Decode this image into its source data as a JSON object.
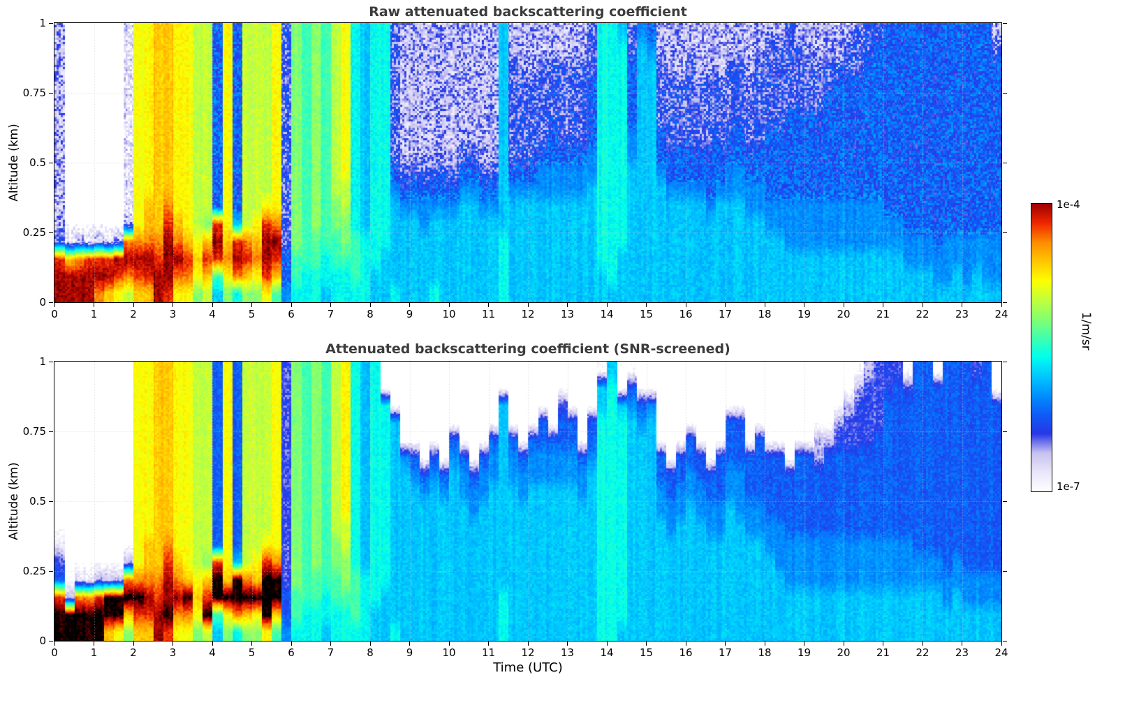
{
  "colorbar": {
    "top_label": "1e-4",
    "bottom_label": "1e-7",
    "unit_label": "1/m/sr"
  },
  "palette": {
    "note": "level 0 = below 1e-7 (white) up to level 15 = 1e-4 (dark red); level 16 = saturated/screened (black)",
    "levels": [
      "#ffffff",
      "#eae6fa",
      "#c8c2f0",
      "#2838e8",
      "#105cf8",
      "#0090ff",
      "#00c8ff",
      "#00ffee",
      "#40ffb0",
      "#85ff70",
      "#c3ff3c",
      "#ffff00",
      "#ffc800",
      "#ff8c00",
      "#f02800",
      "#a00000",
      "#000000"
    ]
  },
  "chart_data": [
    {
      "type": "heatmap",
      "title": "Raw attenuated backscattering coefficient",
      "xlabel": "",
      "ylabel": "Altitude (km)",
      "x_range_hours_utc": [
        0,
        24
      ],
      "y_range_km": [
        0,
        1
      ],
      "x_ticks": [
        0,
        1,
        2,
        3,
        4,
        5,
        6,
        7,
        8,
        9,
        10,
        11,
        12,
        13,
        14,
        15,
        16,
        17,
        18,
        19,
        20,
        21,
        22,
        23,
        24
      ],
      "y_ticks": [
        0,
        0.25,
        0.5,
        0.75,
        1
      ],
      "y_tick_labels": [
        "0",
        "0.25",
        "0.5",
        "0.75",
        "1"
      ],
      "grid": "dotted",
      "colormap": "jet-like, white at low end, 1e-7 to 1e-4 1/m/sr (log scale)",
      "grid_time_step_hours": 0.25,
      "grid_alt_step_km": 0.0625,
      "level_encoding": "each string = one 0.25 h time column, 16 hex chars top(1 km) to bottom(0 km); 0=white/no-signal .. f=1e-4, k=saturated(black)",
      "columns_top_to_bottom": [
        "2222222222223eff",
        "0000000000001cff",
        "0000000000002dff",
        "0000000000001eff",
        "0000000000002efd",
        "0000000000001efc",
        "0000000000002feb",
        "111111111112dfda",
        "bbbbbbbbbbbbdfec",
        "bbbbbbbbbbccdfec",
        "ccccccccccccdeff",
        "ccccccccccdefffe",
        "bbbbbbbbbbbcdfdb",
        "bbbbbbbbbbbbcedb",
        "aaaaaaaaaaaabcb9",
        "aaaaaaaaaaa9ceca",
        "44444444444efe86",
        "bbbbbbbbbbbbcdb9",
        "444444444446efd7",
        "aaaaaaaaaaaadec9",
        "aaaaaaaaaaabcdb9",
        "aaaaaaaaaabeffeb",
        "bbbbbbbbbbbdfec8",
        "3333333333333445",
        "9999999999999887",
        "8888888888888877",
        "9999999999998877",
        "8888888888888776",
        "aaaaaaaaaa998877",
        "bbbbbbbbbaa99877",
        "7777777777778887",
        "6666666666667777",
        "7777777777777766",
        "7777777777777666",
        "3333333345666667",
        "2222222234566666",
        "2222222234566666",
        "2222222234556666",
        "2222222234566667",
        "2222222234566666",
        "2222222234566666",
        "2222222345666666",
        "2222222345666666",
        "2222222234566666",
        "2222222234566666",
        "6666666666667777",
        "2233333345666666",
        "2223333345666666",
        "2223333345666666",
        "2233333455666666",
        "2233334455666666",
        "2233333455666666",
        "2233333455666666",
        "2233333455666666",
        "3334444556666666",
        "7777777777777766",
        "7777777777777776",
        "6777777777777666",
        "3344445566666666",
        "5666666666666666",
        "4566666666666666",
        "2233334456666666",
        "2223333445666666",
        "2223333445666666",
        "2233333445666666",
        "2223333445666666",
        "2223333444566666",
        "2223333445666666",
        "2233334455666666",
        "2233334455666666",
        "2223333445566666",
        "2233333445566666",
        "2333334444556666",
        "2333334444556666",
        "3333344444555666",
        "2333344444555666",
        "2233344444555666",
        "2233344444555666",
        "2233444444555666",
        "2234444444555666",
        "2334444444555666",
        "3334444444555666",
        "3344444444555666",
        "3444444444555666",
        "4444444444455666",
        "4444444444455666",
        "4444444444445566",
        "4444444444445566",
        "4444444444445566",
        "4444444444444556",
        "4444444444445556",
        "4444444444445566",
        "4444444444445556",
        "4444444444445566",
        "4444444444445556",
        "2344444444445556"
      ]
    },
    {
      "type": "heatmap",
      "title": "Attenuated backscattering coefficient (SNR-screened)",
      "xlabel": "Time (UTC)",
      "ylabel": "Altitude (km)",
      "x_range_hours_utc": [
        0,
        24
      ],
      "y_range_km": [
        0,
        1
      ],
      "x_ticks": [
        0,
        1,
        2,
        3,
        4,
        5,
        6,
        7,
        8,
        9,
        10,
        11,
        12,
        13,
        14,
        15,
        16,
        17,
        18,
        19,
        20,
        21,
        22,
        23,
        24
      ],
      "y_ticks": [
        0,
        0.25,
        0.5,
        0.75,
        1
      ],
      "y_tick_labels": [
        "0",
        "0.25",
        "0.5",
        "0.75",
        "1"
      ],
      "grid": "dotted",
      "colormap": "jet-like, white at low end, 1e-7 to 1e-4 1/m/sr (log scale); SNR-screened areas white, saturated layer black",
      "grid_time_step_hours": 0.25,
      "grid_alt_step_km": 0.0625,
      "level_encoding": "each string = one 0.25 h time column, 16 hex chars top(1 km) to bottom(0 km); 0=white/screened .. f=1e-4, k=saturated(black)",
      "columns_top_to_bottom": [
        "0000000000134ekk",
        "00000000000002kk",
        "0000000000001dkk",
        "0000000000001dkk",
        "0000000000002ekk",
        "0000000000002kkc",
        "0000000000002kkb",
        "000000000002dkc9",
        "bbbbbbbbbbbbdkec",
        "bbbbbbbbbbccdfec",
        "ccccccccccccdeff",
        "ccccccccccdeffke",
        "bbbbbbbbbbbcdfdb",
        "bbbbbbbbbbbbckdb",
        "aaaaaaaaaaaabcb9",
        "aaaaaaaaaaa9ceka",
        "44444444444ekk86",
        "bbbbbbbbbbbbckb9",
        "444444444446kkd7",
        "aaaaaaaaaaaadkc9",
        "aaaaaaaaaaabckb9",
        "aaaaaaaaaabekkkb",
        "bbbbbbbbbbbdkkc8",
        "3333333333333445",
        "9999999999999887",
        "8888888888888877",
        "9999999999998877",
        "8888888888888776",
        "aaaaaaaaaa998877",
        "bbbbbbbbbaa99877",
        "7777777777778887",
        "6666666666667777",
        "7777777777777766",
        "0077777777777666",
        "0006666666666667",
        "0000056666666666",
        "0000045666666666",
        "0000004566666666",
        "0000045666666666",
        "0000004566666666",
        "0000456666666666",
        "0000045566666666",
        "0000004556666666",
        "0000045566666666",
        "0000455666666666",
        "0066666666666777",
        "0000455666666666",
        "0000045566666666",
        "0000455666666666",
        "0004455666666666",
        "0000455666666666",
        "0034455666666666",
        "0004455666666666",
        "0000045566666666",
        "0004456666666666",
        "0667777777777777",
        "6777777777777777",
        "0067777777777776",
        "0456666666666666",
        "0045666666666666",
        "0056666666666666",
        "0000044556666666",
        "0000004455666666",
        "0000044556666666",
        "0000445566666666",
        "0000044556666666",
        "0000004455666666",
        "0000044455666666",
        "0004445566666666",
        "0004445556666666",
        "0000044455666666",
        "0000444455666666",
        "0000044445566666",
        "0000044445556666",
        "0000004444555666",
        "0000044444555666",
        "0000044444555666",
        "0000224444555666",
        "0000244444555666",
        "0002344444555666",
        "0023344444555666",
        "0233344444555666",
        "2333344444555666",
        "3333444444555666",
        "3344444444555666",
        "3444444444555666",
        "0344444444555666",
        "4444444444455666",
        "4444444444455666",
        "0444444444455666",
        "4444444444445566",
        "4444444444455666",
        "4444444444445566",
        "3444444444445566",
        "4444444444445566",
        "0044444444445566"
      ]
    }
  ]
}
